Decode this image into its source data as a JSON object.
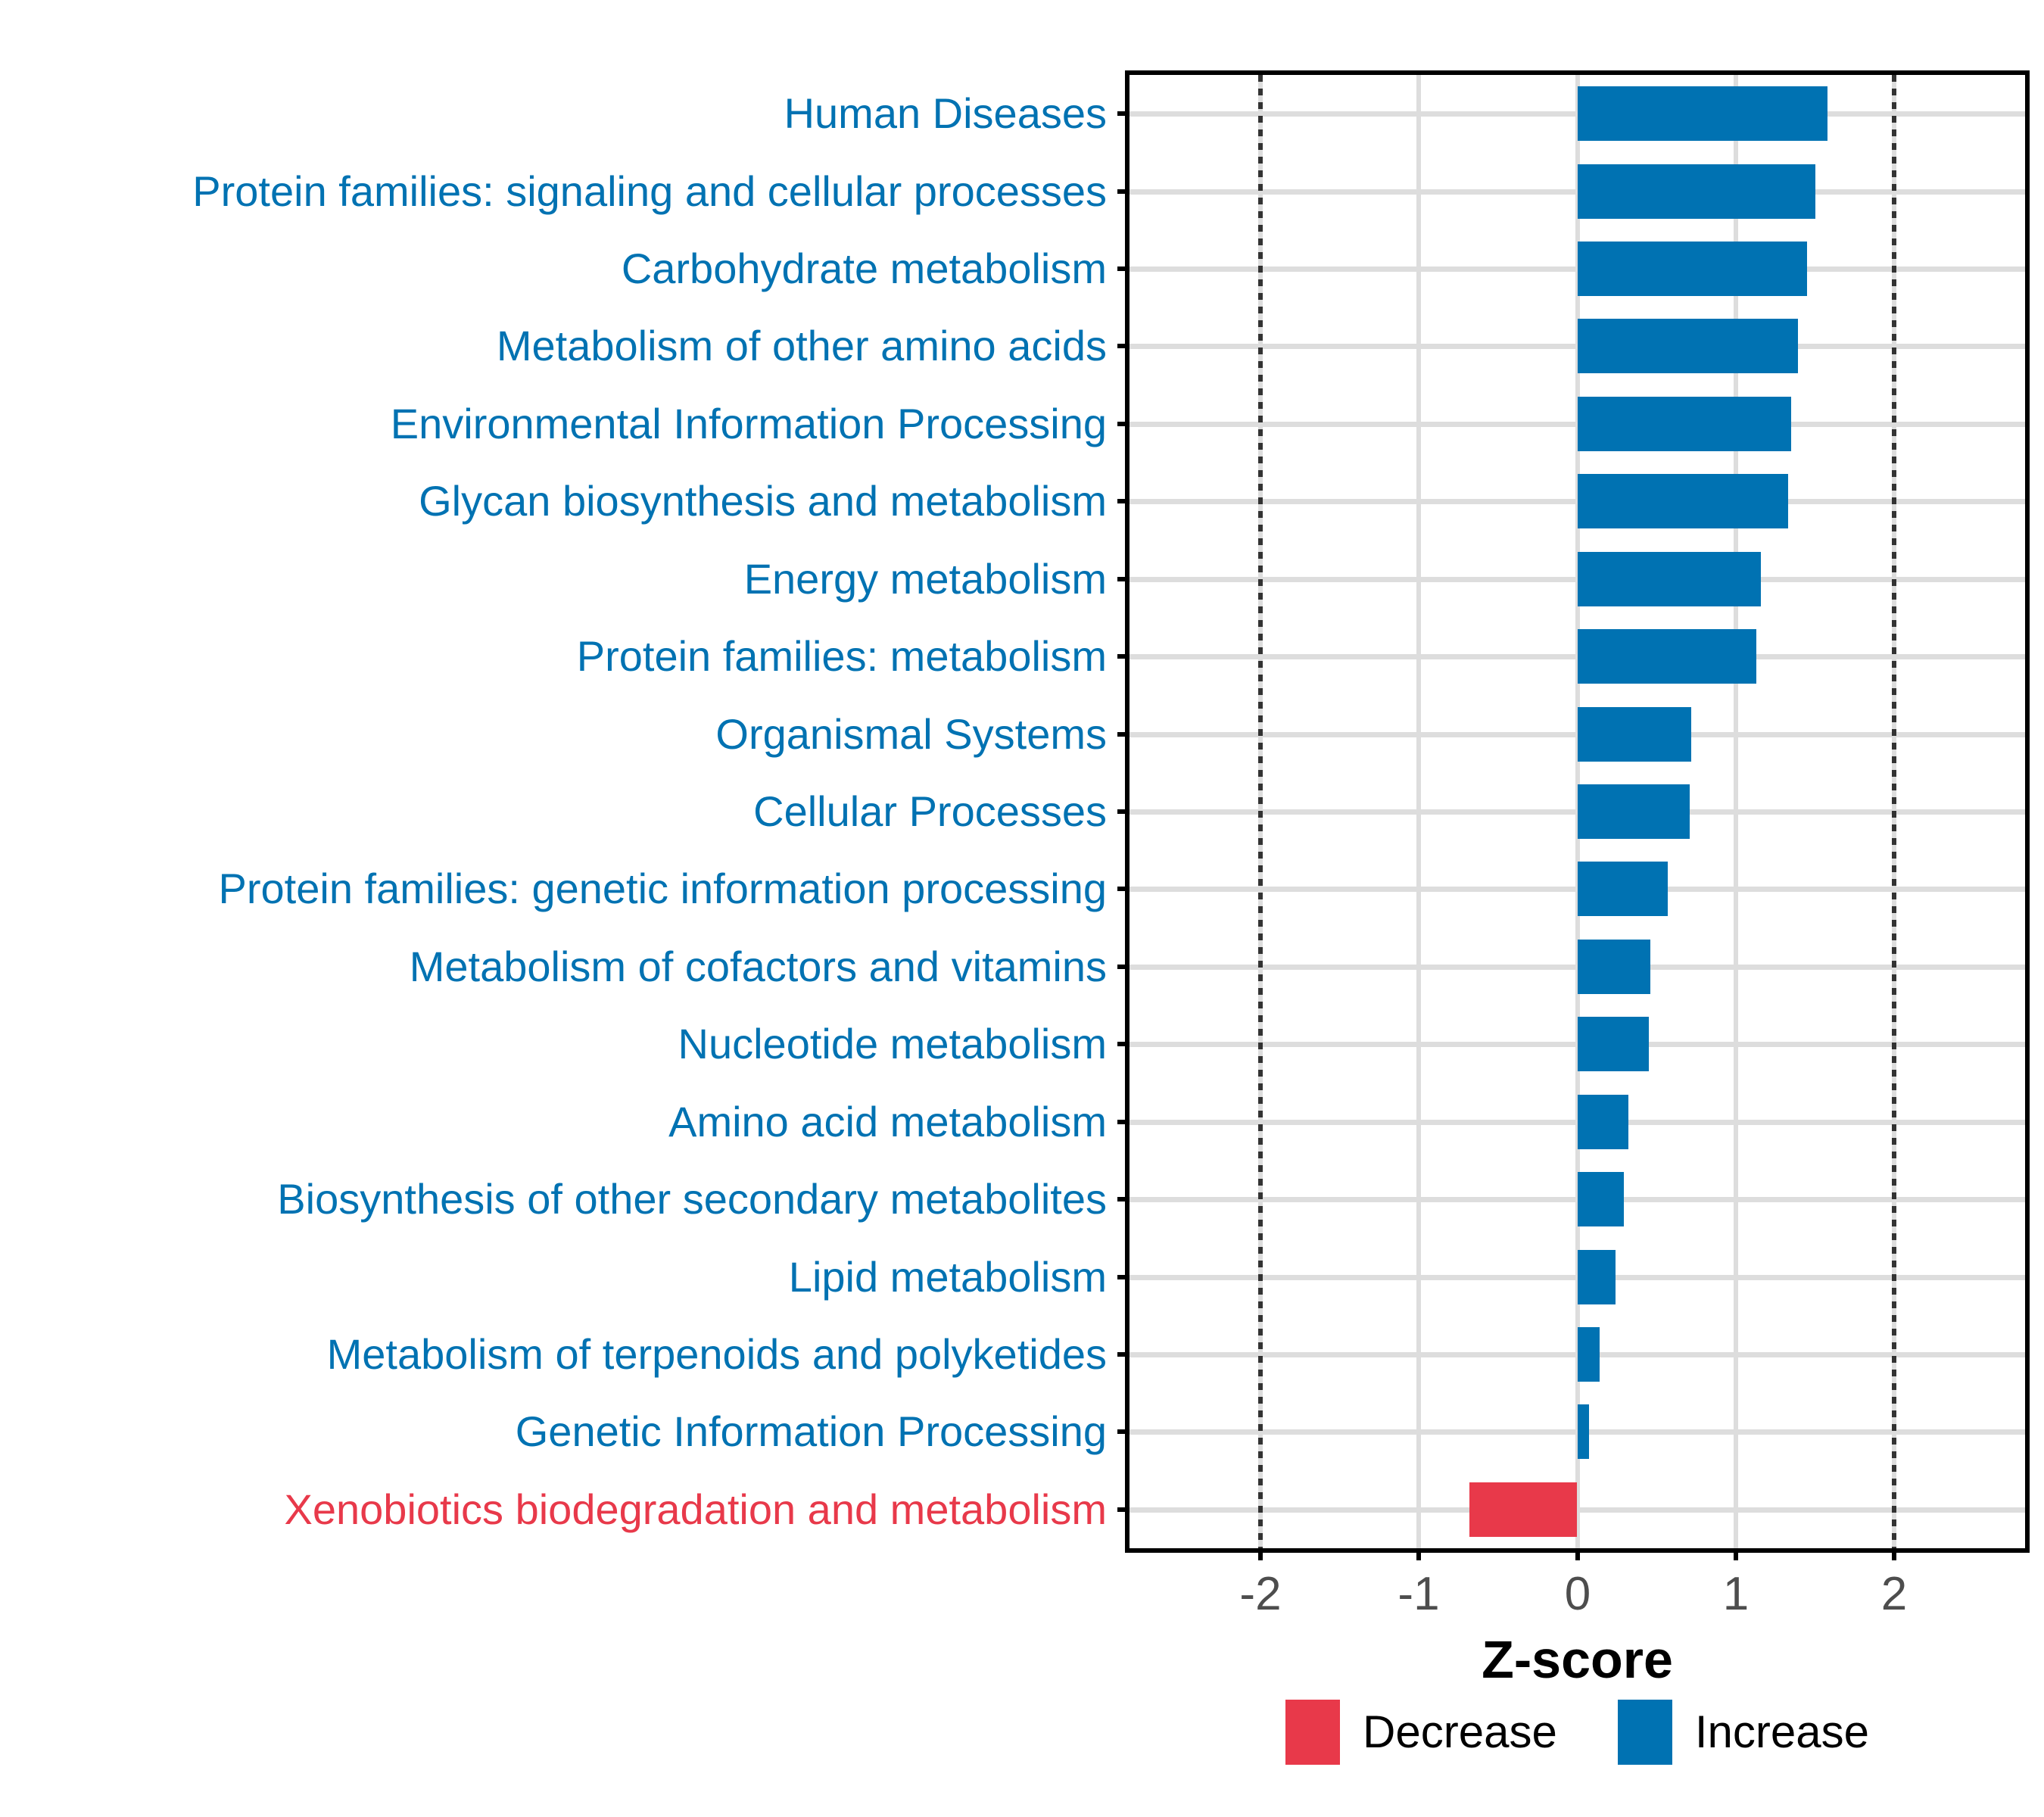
{
  "chart_data": {
    "type": "bar",
    "orientation": "horizontal",
    "title": "",
    "xlabel": "Z-score",
    "ylabel": "",
    "xlim": [
      -2.83,
      2.83
    ],
    "x_ticks": [
      -2,
      -1,
      0,
      1,
      2
    ],
    "x_tick_labels": [
      "-2",
      "-1",
      "0",
      "1",
      "2"
    ],
    "reference_lines": [
      -2,
      2
    ],
    "grid": true,
    "legend_position": "bottom",
    "categories": [
      {
        "label": "Human Diseases",
        "value": 1.58,
        "group": "Increase"
      },
      {
        "label": "Protein families: signaling and cellular processes",
        "value": 1.5,
        "group": "Increase"
      },
      {
        "label": "Carbohydrate metabolism",
        "value": 1.45,
        "group": "Increase"
      },
      {
        "label": "Metabolism of other amino acids",
        "value": 1.39,
        "group": "Increase"
      },
      {
        "label": "Environmental Information Processing",
        "value": 1.35,
        "group": "Increase"
      },
      {
        "label": "Glycan biosynthesis and metabolism",
        "value": 1.33,
        "group": "Increase"
      },
      {
        "label": "Energy metabolism",
        "value": 1.16,
        "group": "Increase"
      },
      {
        "label": "Protein families: metabolism",
        "value": 1.13,
        "group": "Increase"
      },
      {
        "label": "Organismal Systems",
        "value": 0.72,
        "group": "Increase"
      },
      {
        "label": "Cellular Processes",
        "value": 0.71,
        "group": "Increase"
      },
      {
        "label": "Protein families: genetic information processing",
        "value": 0.57,
        "group": "Increase"
      },
      {
        "label": "Metabolism of cofactors and vitamins",
        "value": 0.46,
        "group": "Increase"
      },
      {
        "label": "Nucleotide metabolism",
        "value": 0.45,
        "group": "Increase"
      },
      {
        "label": "Amino acid metabolism",
        "value": 0.32,
        "group": "Increase"
      },
      {
        "label": "Biosynthesis of other secondary metabolites",
        "value": 0.29,
        "group": "Increase"
      },
      {
        "label": "Lipid metabolism",
        "value": 0.24,
        "group": "Increase"
      },
      {
        "label": "Metabolism of terpenoids and polyketides",
        "value": 0.14,
        "group": "Increase"
      },
      {
        "label": "Genetic Information Processing",
        "value": 0.07,
        "group": "Increase"
      },
      {
        "label": "Xenobiotics biodegradation and metabolism",
        "value": -0.68,
        "group": "Decrease"
      }
    ]
  },
  "legend": {
    "items": [
      {
        "label": "Decrease",
        "color": "#E8394A"
      },
      {
        "label": "Increase",
        "color": "#0072B2"
      }
    ]
  },
  "colors": {
    "increase": "#0072B2",
    "decrease": "#E8394A",
    "grid": "#DDDDDD",
    "panel_border": "#000000",
    "reference_line": "#333333",
    "tick_label": "#4D4D4D",
    "axis_title": "#000000",
    "background": "#FFFFFF"
  }
}
